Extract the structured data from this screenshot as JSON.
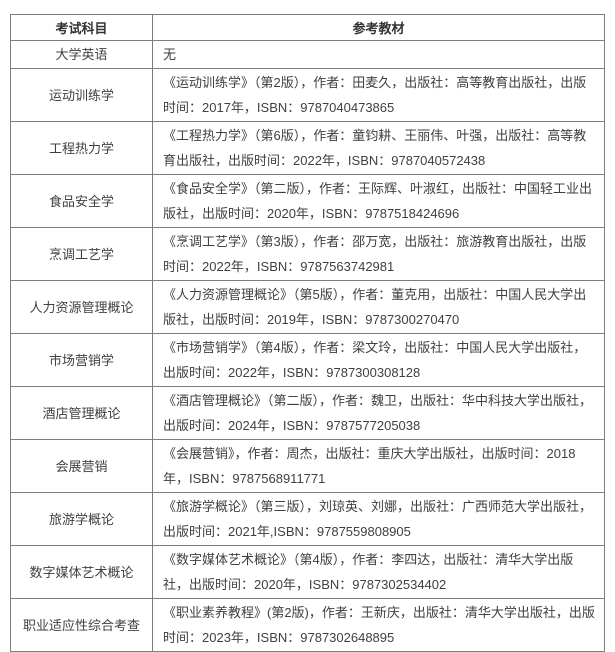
{
  "table": {
    "headers": {
      "subject": "考试科目",
      "material": "参考教材"
    },
    "rows": [
      {
        "subject": "大学英语",
        "material": "无"
      },
      {
        "subject": "运动训练学",
        "material": "《运动训练学》（第2版），作者：田麦久，出版社：高等教育出版社，出版时间：2017年，ISBN：9787040473865"
      },
      {
        "subject": "工程热力学",
        "material": "《工程热力学》（第6版），作者：童钧耕、王丽伟、叶强，出版社：高等教育出版社，出版时间：2022年，ISBN：9787040572438"
      },
      {
        "subject": "食品安全学",
        "material": "《食品安全学》（第二版），作者：王际辉、叶淑红，出版社：中国轻工业出版社，出版时间：2020年，ISBN：9787518424696"
      },
      {
        "subject": "烹调工艺学",
        "material": "《烹调工艺学》（第3版），作者：邵万宽，出版社：旅游教育出版社，出版时间：2022年，ISBN：9787563742981"
      },
      {
        "subject": "人力资源管理概论",
        "material": "《人力资源管理概论》（第5版），作者：董克用，出版社：中国人民大学出版社，出版时间：2019年，ISBN：9787300270470"
      },
      {
        "subject": "市场营销学",
        "material": "《市场营销学》（第4版），作者：梁文玲，出版社：中国人民大学出版社，出版时间：2022年，ISBN：9787300308128"
      },
      {
        "subject": "酒店管理概论",
        "material": "《酒店管理概论》（第二版），作者：魏卫，出版社：华中科技大学出版社，出版时间：2024年，ISBN：9787577205038"
      },
      {
        "subject": "会展营销",
        "material": "《会展营销》，作者：周杰，出版社：重庆大学出版社，出版时间：2018年，ISBN：9787568911771"
      },
      {
        "subject": "旅游学概论",
        "material": "《旅游学概论》（第三版），刘琼英、刘娜，出版社：广西师范大学出版社，出版时间：2021年,ISBN：9787559808905"
      },
      {
        "subject": "数字媒体艺术概论",
        "material": "《数字媒体艺术概论》（第4版），作者：李四达，出版社：清华大学出版社，出版时间：2020年，ISBN：9787302534402"
      },
      {
        "subject": "职业适应性综合考查",
        "material": "《职业素养教程》(第2版)，作者：王新庆，出版社：清华大学出版社，出版时间：2023年，ISBN：9787302648895"
      }
    ],
    "colors": {
      "border": "#7d7d7d",
      "text": "#404040",
      "header_text": "#333333"
    }
  }
}
